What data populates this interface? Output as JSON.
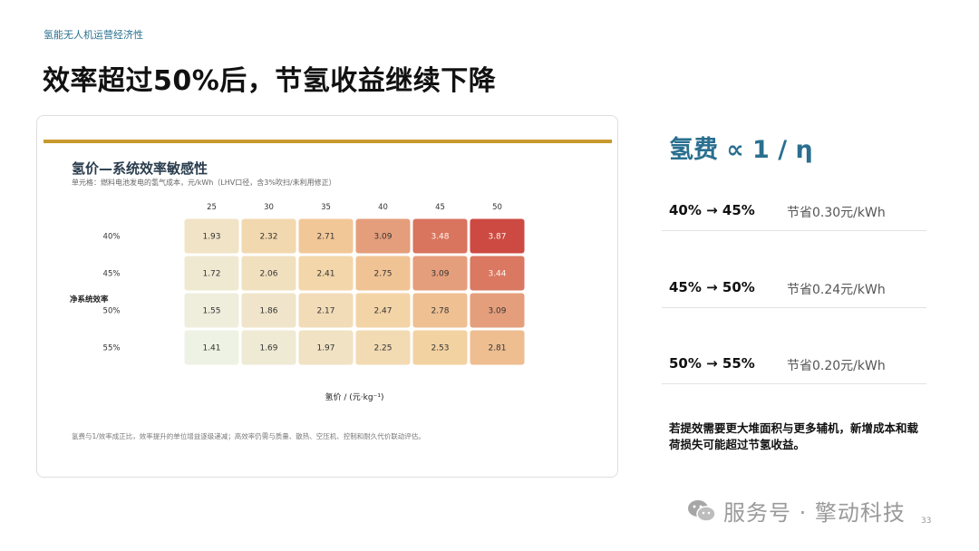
{
  "slide": {
    "kicker": "氢能无人机运营经济性",
    "title": "效率超过50%后，节氢收益继续下降",
    "page_number": "33"
  },
  "panel": {
    "formula": "氢费 ∝ 1 / η",
    "rows": [
      {
        "range": "40% → 45%",
        "saving": "节省0.30元/kWh"
      },
      {
        "range": "45% → 50%",
        "saving": "节省0.24元/kWh"
      },
      {
        "range": "50% → 55%",
        "saving": "节省0.20元/kWh"
      }
    ],
    "conclusion": "若提效需要更大堆面积与更多辅机，新增成本和载荷损失可能超过节氢收益。"
  },
  "watermark": {
    "text": "服务号 · 擎动科技",
    "icon": "wechat-icon"
  },
  "colors": {
    "accent": "#2a6f8f",
    "gold_bar": "#c89a2e",
    "heat_low": "#eef2e4",
    "heat_mid": "#f4cf9c",
    "heat_high": "#cc4a42"
  },
  "chart_data": {
    "type": "heatmap",
    "title": "氢价—系统效率敏感性",
    "subtitle": "单元格：燃料电池发电的氢气成本，元/kWh（LHV口径，含3%吹扫/未利用修正）",
    "x": [
      25,
      30,
      35,
      40,
      45,
      50
    ],
    "x_labels": [
      "25",
      "30",
      "35",
      "40",
      "45",
      "50"
    ],
    "y": [
      "40%",
      "45%",
      "50%",
      "55%"
    ],
    "xlabel": "氢价 / (元·kg⁻¹)",
    "ylabel": "净系统效率",
    "values": [
      [
        1.93,
        2.32,
        2.71,
        3.09,
        3.48,
        3.87
      ],
      [
        1.72,
        2.06,
        2.41,
        2.75,
        3.09,
        3.44
      ],
      [
        1.55,
        1.86,
        2.17,
        2.47,
        2.78,
        3.09
      ],
      [
        1.41,
        1.69,
        1.97,
        2.25,
        2.53,
        2.81
      ]
    ],
    "footnote": "氢费与1/效率成正比，效率提升的单位增益逐级递减；高效率仍需与质量、散热、空压机、控制和耐久代价联动评估。"
  }
}
